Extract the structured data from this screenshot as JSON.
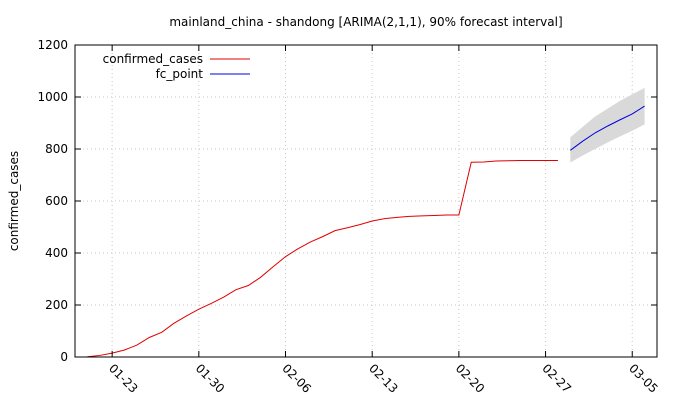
{
  "chart_data": {
    "type": "line",
    "title": "mainland_china - shandong [ARIMA(2,1,1), 90% forecast interval]",
    "xlabel": "",
    "ylabel": "confirmed_cases",
    "xlim": [
      "2020-01-20",
      "2020-03-07"
    ],
    "ylim": [
      0,
      1200
    ],
    "yticks": [
      0,
      200,
      400,
      600,
      800,
      1000,
      1200
    ],
    "xticks": [
      {
        "date": "2020-01-23",
        "label": "01-23"
      },
      {
        "date": "2020-01-30",
        "label": "01-30"
      },
      {
        "date": "2020-02-06",
        "label": "02-06"
      },
      {
        "date": "2020-02-13",
        "label": "02-13"
      },
      {
        "date": "2020-02-20",
        "label": "02-20"
      },
      {
        "date": "2020-02-27",
        "label": "02-27"
      },
      {
        "date": "2020-03-05",
        "label": "03-05"
      }
    ],
    "grid": true,
    "legend_position": "top-left",
    "series": [
      {
        "name": "confirmed_cases",
        "color": "#e00000",
        "points": [
          [
            "2020-01-21",
            1
          ],
          [
            "2020-01-22",
            6
          ],
          [
            "2020-01-23",
            15
          ],
          [
            "2020-01-24",
            27
          ],
          [
            "2020-01-25",
            46
          ],
          [
            "2020-01-26",
            75
          ],
          [
            "2020-01-27",
            95
          ],
          [
            "2020-01-28",
            130
          ],
          [
            "2020-01-29",
            158
          ],
          [
            "2020-01-30",
            184
          ],
          [
            "2020-01-31",
            206
          ],
          [
            "2020-02-01",
            230
          ],
          [
            "2020-02-02",
            259
          ],
          [
            "2020-02-03",
            275
          ],
          [
            "2020-02-04",
            307
          ],
          [
            "2020-02-05",
            347
          ],
          [
            "2020-02-06",
            386
          ],
          [
            "2020-02-07",
            416
          ],
          [
            "2020-02-08",
            442
          ],
          [
            "2020-02-09",
            463
          ],
          [
            "2020-02-10",
            486
          ],
          [
            "2020-02-11",
            497
          ],
          [
            "2020-02-12",
            509
          ],
          [
            "2020-02-13",
            523
          ],
          [
            "2020-02-14",
            532
          ],
          [
            "2020-02-15",
            537
          ],
          [
            "2020-02-16",
            541
          ],
          [
            "2020-02-17",
            543
          ],
          [
            "2020-02-18",
            544
          ],
          [
            "2020-02-19",
            546
          ],
          [
            "2020-02-20",
            546
          ],
          [
            "2020-02-21",
            749
          ],
          [
            "2020-02-22",
            750
          ],
          [
            "2020-02-23",
            754
          ],
          [
            "2020-02-24",
            755
          ],
          [
            "2020-02-25",
            756
          ],
          [
            "2020-02-26",
            756
          ],
          [
            "2020-02-27",
            756
          ],
          [
            "2020-02-28",
            756
          ]
        ]
      },
      {
        "name": "fc_point",
        "color": "#0000e0",
        "points": [
          [
            "2020-02-29",
            795
          ],
          [
            "2020-03-01",
            830
          ],
          [
            "2020-03-02",
            862
          ],
          [
            "2020-03-03",
            888
          ],
          [
            "2020-03-04",
            912
          ],
          [
            "2020-03-05",
            935
          ],
          [
            "2020-03-06",
            965
          ]
        ]
      }
    ],
    "forecast_interval": {
      "level": "90%",
      "color": "#d9d9d9",
      "lower": [
        [
          "2020-02-29",
          748
        ],
        [
          "2020-03-01",
          775
        ],
        [
          "2020-03-02",
          800
        ],
        [
          "2020-03-03",
          825
        ],
        [
          "2020-03-04",
          848
        ],
        [
          "2020-03-05",
          870
        ],
        [
          "2020-03-06",
          895
        ]
      ],
      "upper": [
        [
          "2020-02-29",
          845
        ],
        [
          "2020-03-01",
          885
        ],
        [
          "2020-03-02",
          925
        ],
        [
          "2020-03-03",
          955
        ],
        [
          "2020-03-04",
          985
        ],
        [
          "2020-03-05",
          1010
        ],
        [
          "2020-03-06",
          1035
        ]
      ]
    }
  }
}
